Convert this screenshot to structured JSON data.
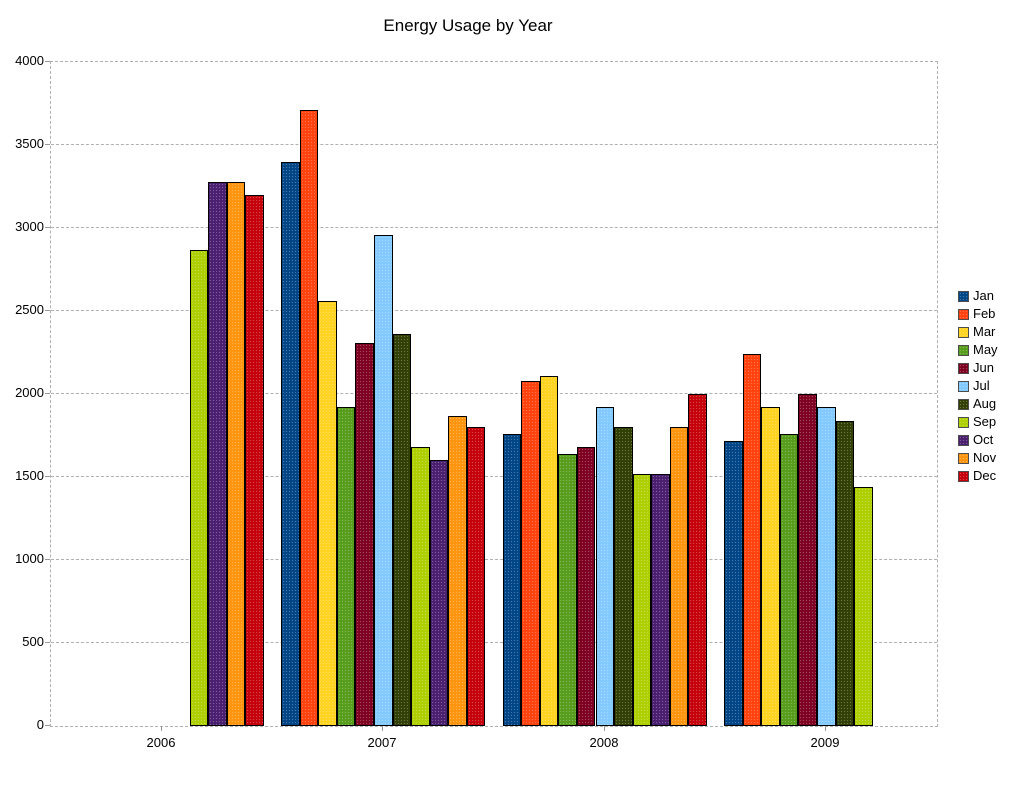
{
  "chart_data": {
    "type": "bar",
    "title": "Energy Usage by Year",
    "categories": [
      "2006",
      "2007",
      "2008",
      "2009"
    ],
    "series": [
      {
        "name": "Jan",
        "color": "#004586",
        "values": [
          null,
          3400,
          1760,
          1720
        ]
      },
      {
        "name": "Feb",
        "color": "#ff420e",
        "values": [
          null,
          3710,
          2080,
          2240
        ]
      },
      {
        "name": "Mar",
        "color": "#ffd320",
        "values": [
          null,
          2560,
          2110,
          1920
        ]
      },
      {
        "name": "May",
        "color": "#579d1c",
        "values": [
          null,
          1920,
          1640,
          1760
        ]
      },
      {
        "name": "Jun",
        "color": "#7e0021",
        "values": [
          null,
          2310,
          1680,
          2000
        ]
      },
      {
        "name": "Jul",
        "color": "#83caff",
        "values": [
          null,
          2960,
          1920,
          1920
        ]
      },
      {
        "name": "Aug",
        "color": "#314004",
        "values": [
          null,
          2360,
          1800,
          1840
        ]
      },
      {
        "name": "Sep",
        "color": "#aecf00",
        "values": [
          2870,
          1680,
          1520,
          1440
        ]
      },
      {
        "name": "Oct",
        "color": "#4b1f6f",
        "values": [
          3280,
          1600,
          1520,
          null
        ]
      },
      {
        "name": "Nov",
        "color": "#ff950e",
        "values": [
          3280,
          1870,
          1800,
          null
        ]
      },
      {
        "name": "Dec",
        "color": "#c5000b",
        "values": [
          3200,
          1800,
          2000,
          null
        ]
      }
    ],
    "ylim": [
      0,
      4000
    ],
    "ytick_step": 500,
    "ytick_labels": [
      "0",
      "500",
      "1000",
      "1500",
      "2000",
      "2500",
      "3000",
      "3500",
      "4000"
    ],
    "grid": true,
    "legend_position": "right",
    "axis_color": "#b0b0b0",
    "xlabel": "",
    "ylabel": ""
  }
}
